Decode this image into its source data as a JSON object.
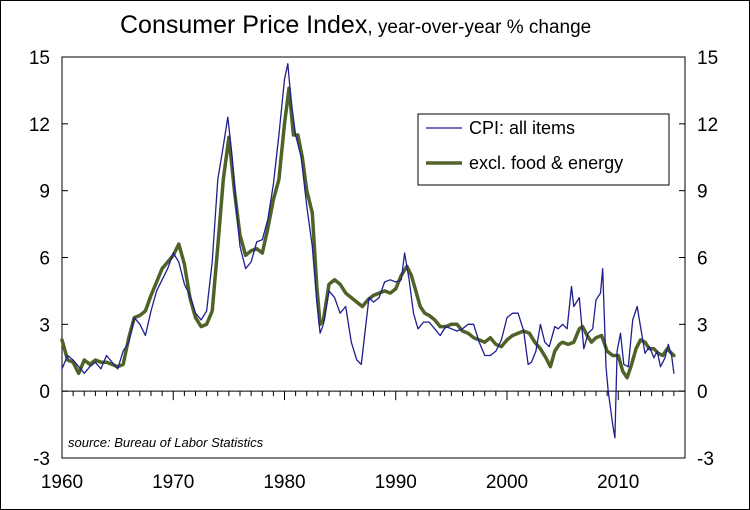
{
  "chart_data": {
    "type": "line",
    "title": "Consumer Price Index",
    "subtitle": ", year-over-year % change",
    "source": "source: Bureau of Labor Statistics",
    "xlim": [
      1960,
      2016
    ],
    "ylim": [
      -3,
      15
    ],
    "x_ticks": [
      "1960",
      "1970",
      "1980",
      "1990",
      "2000",
      "2010"
    ],
    "y_ticks": [
      "15",
      "12",
      "9",
      "6",
      "3",
      "0",
      "-3"
    ],
    "legend_position": "top-right",
    "grid": false,
    "series": [
      {
        "name": "CPI: all items",
        "color": "#1f1f8f",
        "points": [
          [
            1960.0,
            1.0
          ],
          [
            1960.5,
            1.6
          ],
          [
            1961.0,
            1.4
          ],
          [
            1961.5,
            1.1
          ],
          [
            1962.0,
            0.8
          ],
          [
            1962.5,
            1.1
          ],
          [
            1963.0,
            1.3
          ],
          [
            1963.5,
            1.0
          ],
          [
            1964.0,
            1.6
          ],
          [
            1964.5,
            1.3
          ],
          [
            1965.0,
            1.0
          ],
          [
            1965.5,
            1.8
          ],
          [
            1966.0,
            2.2
          ],
          [
            1966.5,
            3.3
          ],
          [
            1967.0,
            3.0
          ],
          [
            1967.5,
            2.5
          ],
          [
            1968.0,
            3.6
          ],
          [
            1968.5,
            4.5
          ],
          [
            1969.0,
            5.0
          ],
          [
            1969.5,
            5.5
          ],
          [
            1970.0,
            6.2
          ],
          [
            1970.5,
            5.8
          ],
          [
            1971.0,
            4.8
          ],
          [
            1971.5,
            4.3
          ],
          [
            1972.0,
            3.5
          ],
          [
            1972.5,
            3.2
          ],
          [
            1973.0,
            3.6
          ],
          [
            1973.5,
            5.8
          ],
          [
            1974.0,
            9.5
          ],
          [
            1974.5,
            11.0
          ],
          [
            1974.9,
            12.3
          ],
          [
            1975.3,
            10.5
          ],
          [
            1975.6,
            8.6
          ],
          [
            1976.0,
            6.5
          ],
          [
            1976.5,
            5.5
          ],
          [
            1977.0,
            5.8
          ],
          [
            1977.5,
            6.7
          ],
          [
            1978.0,
            6.8
          ],
          [
            1978.5,
            7.7
          ],
          [
            1979.0,
            9.3
          ],
          [
            1979.5,
            11.5
          ],
          [
            1980.0,
            14.0
          ],
          [
            1980.3,
            14.7
          ],
          [
            1980.6,
            13.0
          ],
          [
            1981.0,
            11.5
          ],
          [
            1981.5,
            10.5
          ],
          [
            1982.0,
            8.3
          ],
          [
            1982.5,
            6.5
          ],
          [
            1982.9,
            4.0
          ],
          [
            1983.2,
            2.6
          ],
          [
            1983.5,
            3.0
          ],
          [
            1984.0,
            4.5
          ],
          [
            1984.5,
            4.2
          ],
          [
            1985.0,
            3.5
          ],
          [
            1985.5,
            3.8
          ],
          [
            1986.0,
            2.2
          ],
          [
            1986.5,
            1.4
          ],
          [
            1986.9,
            1.2
          ],
          [
            1987.2,
            2.5
          ],
          [
            1987.6,
            4.2
          ],
          [
            1988.0,
            4.0
          ],
          [
            1988.5,
            4.2
          ],
          [
            1989.0,
            4.9
          ],
          [
            1989.5,
            5.0
          ],
          [
            1990.0,
            4.9
          ],
          [
            1990.5,
            5.0
          ],
          [
            1990.8,
            6.2
          ],
          [
            1991.2,
            5.0
          ],
          [
            1991.6,
            3.5
          ],
          [
            1992.0,
            2.8
          ],
          [
            1992.5,
            3.1
          ],
          [
            1993.0,
            3.1
          ],
          [
            1993.5,
            2.8
          ],
          [
            1994.0,
            2.5
          ],
          [
            1994.5,
            2.9
          ],
          [
            1995.0,
            2.8
          ],
          [
            1995.5,
            2.7
          ],
          [
            1996.0,
            2.8
          ],
          [
            1996.5,
            3.0
          ],
          [
            1997.0,
            3.0
          ],
          [
            1997.5,
            2.2
          ],
          [
            1998.0,
            1.6
          ],
          [
            1998.5,
            1.6
          ],
          [
            1999.0,
            1.8
          ],
          [
            1999.5,
            2.3
          ],
          [
            2000.0,
            3.3
          ],
          [
            2000.5,
            3.5
          ],
          [
            2001.0,
            3.5
          ],
          [
            2001.5,
            2.7
          ],
          [
            2001.9,
            1.2
          ],
          [
            2002.2,
            1.3
          ],
          [
            2002.6,
            1.8
          ],
          [
            2003.0,
            3.0
          ],
          [
            2003.4,
            2.2
          ],
          [
            2003.8,
            2.0
          ],
          [
            2004.3,
            2.9
          ],
          [
            2004.6,
            2.8
          ],
          [
            2005.0,
            3.0
          ],
          [
            2005.4,
            2.8
          ],
          [
            2005.8,
            4.7
          ],
          [
            2006.0,
            3.8
          ],
          [
            2006.5,
            4.2
          ],
          [
            2006.9,
            1.9
          ],
          [
            2007.3,
            2.6
          ],
          [
            2007.7,
            2.8
          ],
          [
            2008.0,
            4.1
          ],
          [
            2008.4,
            4.4
          ],
          [
            2008.6,
            5.5
          ],
          [
            2008.9,
            1.1
          ],
          [
            2009.1,
            0.0
          ],
          [
            2009.5,
            -1.5
          ],
          [
            2009.7,
            -2.1
          ],
          [
            2009.9,
            1.8
          ],
          [
            2010.2,
            2.6
          ],
          [
            2010.5,
            1.2
          ],
          [
            2010.9,
            1.1
          ],
          [
            2011.3,
            3.2
          ],
          [
            2011.7,
            3.8
          ],
          [
            2012.0,
            2.9
          ],
          [
            2012.4,
            1.7
          ],
          [
            2012.8,
            2.0
          ],
          [
            2013.2,
            1.5
          ],
          [
            2013.5,
            1.8
          ],
          [
            2013.8,
            1.1
          ],
          [
            2014.2,
            1.5
          ],
          [
            2014.5,
            2.1
          ],
          [
            2014.8,
            1.6
          ],
          [
            2015.0,
            0.8
          ]
        ]
      },
      {
        "name": "excl. food & energy",
        "color": "#4f6228",
        "points": [
          [
            1960.0,
            2.3
          ],
          [
            1960.5,
            1.4
          ],
          [
            1961.0,
            1.3
          ],
          [
            1961.5,
            0.8
          ],
          [
            1962.0,
            1.4
          ],
          [
            1962.5,
            1.2
          ],
          [
            1963.0,
            1.4
          ],
          [
            1963.5,
            1.3
          ],
          [
            1964.0,
            1.3
          ],
          [
            1964.5,
            1.2
          ],
          [
            1965.0,
            1.1
          ],
          [
            1965.5,
            1.2
          ],
          [
            1966.0,
            2.4
          ],
          [
            1966.5,
            3.3
          ],
          [
            1967.0,
            3.4
          ],
          [
            1967.5,
            3.6
          ],
          [
            1968.0,
            4.3
          ],
          [
            1968.5,
            4.9
          ],
          [
            1969.0,
            5.5
          ],
          [
            1969.5,
            5.8
          ],
          [
            1970.0,
            6.1
          ],
          [
            1970.5,
            6.6
          ],
          [
            1971.0,
            5.7
          ],
          [
            1971.5,
            4.2
          ],
          [
            1972.0,
            3.3
          ],
          [
            1972.5,
            2.9
          ],
          [
            1973.0,
            3.0
          ],
          [
            1973.5,
            3.6
          ],
          [
            1974.0,
            6.5
          ],
          [
            1974.5,
            9.5
          ],
          [
            1975.0,
            11.4
          ],
          [
            1975.5,
            9.0
          ],
          [
            1976.0,
            7.0
          ],
          [
            1976.5,
            6.1
          ],
          [
            1977.0,
            6.3
          ],
          [
            1977.5,
            6.4
          ],
          [
            1978.0,
            6.2
          ],
          [
            1978.5,
            7.3
          ],
          [
            1979.0,
            8.6
          ],
          [
            1979.5,
            9.5
          ],
          [
            1980.0,
            12.0
          ],
          [
            1980.4,
            13.6
          ],
          [
            1980.8,
            11.5
          ],
          [
            1981.2,
            11.5
          ],
          [
            1981.6,
            10.5
          ],
          [
            1982.0,
            9.0
          ],
          [
            1982.5,
            8.0
          ],
          [
            1982.9,
            4.7
          ],
          [
            1983.2,
            3.0
          ],
          [
            1983.5,
            3.2
          ],
          [
            1984.0,
            4.8
          ],
          [
            1984.5,
            5.0
          ],
          [
            1985.0,
            4.8
          ],
          [
            1985.5,
            4.4
          ],
          [
            1986.0,
            4.2
          ],
          [
            1986.5,
            4.0
          ],
          [
            1987.0,
            3.8
          ],
          [
            1987.5,
            4.1
          ],
          [
            1988.0,
            4.3
          ],
          [
            1988.5,
            4.4
          ],
          [
            1989.0,
            4.5
          ],
          [
            1989.5,
            4.4
          ],
          [
            1990.0,
            4.6
          ],
          [
            1990.5,
            5.2
          ],
          [
            1991.0,
            5.6
          ],
          [
            1991.4,
            5.2
          ],
          [
            1991.8,
            4.5
          ],
          [
            1992.2,
            3.8
          ],
          [
            1992.6,
            3.5
          ],
          [
            1993.0,
            3.4
          ],
          [
            1993.5,
            3.2
          ],
          [
            1994.0,
            2.9
          ],
          [
            1994.5,
            2.9
          ],
          [
            1995.0,
            3.0
          ],
          [
            1995.5,
            3.0
          ],
          [
            1996.0,
            2.7
          ],
          [
            1996.5,
            2.6
          ],
          [
            1997.0,
            2.4
          ],
          [
            1997.5,
            2.3
          ],
          [
            1998.0,
            2.2
          ],
          [
            1998.5,
            2.4
          ],
          [
            1999.0,
            2.1
          ],
          [
            1999.5,
            2.0
          ],
          [
            2000.0,
            2.3
          ],
          [
            2000.5,
            2.5
          ],
          [
            2001.0,
            2.6
          ],
          [
            2001.5,
            2.7
          ],
          [
            2002.0,
            2.6
          ],
          [
            2002.5,
            2.2
          ],
          [
            2003.0,
            1.9
          ],
          [
            2003.5,
            1.5
          ],
          [
            2003.9,
            1.1
          ],
          [
            2004.3,
            1.8
          ],
          [
            2004.7,
            2.1
          ],
          [
            2005.0,
            2.2
          ],
          [
            2005.5,
            2.1
          ],
          [
            2006.0,
            2.2
          ],
          [
            2006.5,
            2.8
          ],
          [
            2006.8,
            2.9
          ],
          [
            2007.2,
            2.5
          ],
          [
            2007.6,
            2.2
          ],
          [
            2008.0,
            2.4
          ],
          [
            2008.5,
            2.5
          ],
          [
            2009.0,
            1.8
          ],
          [
            2009.5,
            1.6
          ],
          [
            2010.0,
            1.6
          ],
          [
            2010.4,
            0.9
          ],
          [
            2010.8,
            0.6
          ],
          [
            2011.2,
            1.2
          ],
          [
            2011.6,
            1.9
          ],
          [
            2012.0,
            2.3
          ],
          [
            2012.4,
            2.2
          ],
          [
            2012.8,
            1.9
          ],
          [
            2013.2,
            1.9
          ],
          [
            2013.6,
            1.7
          ],
          [
            2014.0,
            1.6
          ],
          [
            2014.4,
            1.9
          ],
          [
            2014.8,
            1.7
          ],
          [
            2015.0,
            1.6
          ]
        ]
      }
    ]
  }
}
